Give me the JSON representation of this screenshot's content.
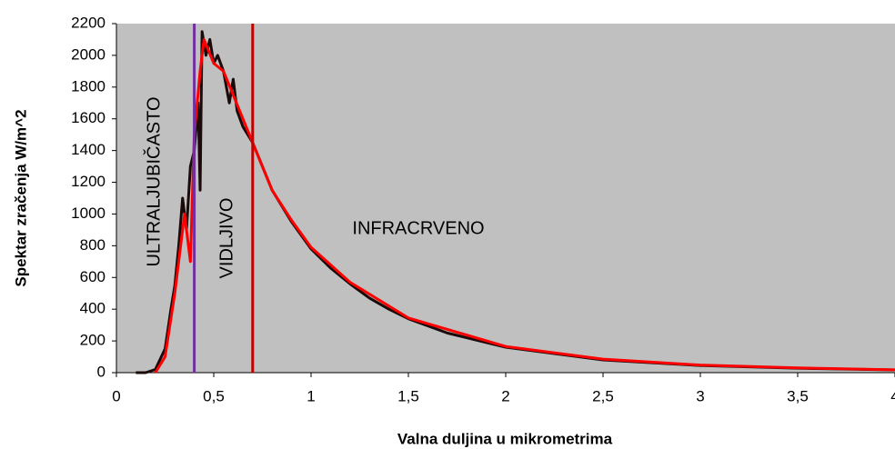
{
  "chart_data": {
    "type": "line",
    "xlabel": "Valna duljina u mikrometrima",
    "ylabel": "Spektar zračenja W/m^2",
    "xlim": [
      0,
      4
    ],
    "xticks": [
      0,
      {
        "value": 0.5,
        "label": "0,5"
      },
      1,
      {
        "value": 1.5,
        "label": "1,5"
      },
      2,
      {
        "value": 2.5,
        "label": "2,5"
      },
      3,
      {
        "value": 3.5,
        "label": "3,5"
      },
      4
    ],
    "ylim": [
      0,
      2200
    ],
    "yticks": [
      0,
      200,
      400,
      600,
      800,
      1000,
      1200,
      1400,
      1600,
      1800,
      2000,
      2200
    ],
    "background": "#c0c0c0",
    "series": [
      {
        "color": "#1a0a0a",
        "x": [
          0.1,
          0.15,
          0.2,
          0.25,
          0.28,
          0.3,
          0.32,
          0.34,
          0.36,
          0.38,
          0.4,
          0.42,
          0.43,
          0.44,
          0.46,
          0.48,
          0.5,
          0.52,
          0.55,
          0.58,
          0.6,
          0.62,
          0.65,
          0.7,
          0.75,
          0.8,
          0.85,
          0.9,
          1.0,
          1.1,
          1.2,
          1.3,
          1.4,
          1.5,
          1.7,
          2.0,
          2.5,
          3.0,
          3.5,
          4.0
        ],
        "values": [
          0,
          0,
          20,
          150,
          400,
          550,
          800,
          1100,
          900,
          1300,
          1400,
          1700,
          1150,
          2150,
          2000,
          2100,
          1950,
          2000,
          1900,
          1700,
          1850,
          1650,
          1550,
          1450,
          1300,
          1150,
          1050,
          950,
          780,
          660,
          560,
          470,
          400,
          340,
          250,
          160,
          80,
          45,
          28,
          17
        ]
      },
      {
        "color": "#ff0000",
        "x": [
          0.2,
          0.25,
          0.3,
          0.35,
          0.38,
          0.4,
          0.43,
          0.45,
          0.5,
          0.55,
          0.6,
          0.7,
          0.8,
          0.9,
          1.0,
          1.2,
          1.5,
          2.0,
          2.5,
          3.0,
          3.5,
          4.0
        ],
        "values": [
          0,
          100,
          500,
          1000,
          700,
          1500,
          1900,
          2100,
          1950,
          1900,
          1750,
          1450,
          1150,
          960,
          790,
          570,
          345,
          165,
          85,
          48,
          30,
          18
        ]
      }
    ],
    "vlines": [
      {
        "x": 0.4,
        "color": "#7030a0"
      },
      {
        "x": 0.7,
        "color": "#c00000"
      }
    ],
    "annotations": [
      {
        "text": "ULTRALJUBIČASTO",
        "color": "#7030a0"
      },
      {
        "text": "VIDLJIVO",
        "color": "#ffff00"
      },
      {
        "text": "INFRACRVENO",
        "color": "#c00000"
      }
    ]
  }
}
